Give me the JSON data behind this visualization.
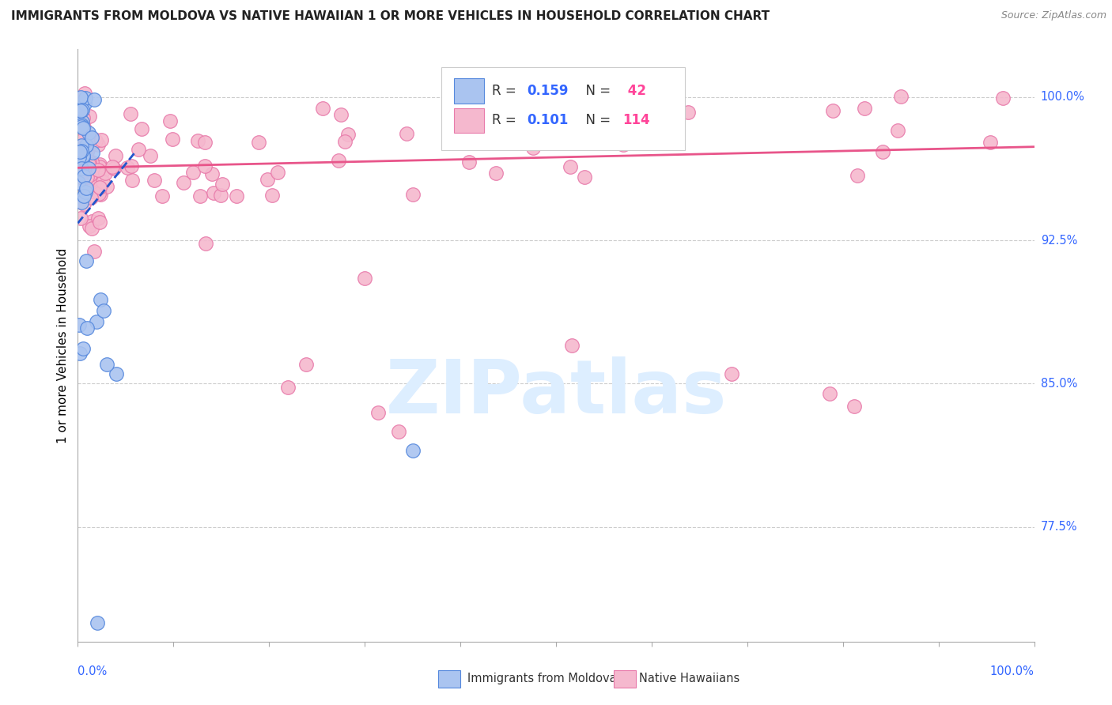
{
  "title": "IMMIGRANTS FROM MOLDOVA VS NATIVE HAWAIIAN 1 OR MORE VEHICLES IN HOUSEHOLD CORRELATION CHART",
  "source": "Source: ZipAtlas.com",
  "ylabel": "1 or more Vehicles in Household",
  "ytick_labels": [
    "77.5%",
    "85.0%",
    "92.5%",
    "100.0%"
  ],
  "ytick_values": [
    0.775,
    0.85,
    0.925,
    1.0
  ],
  "xlim": [
    0.0,
    1.0
  ],
  "ylim": [
    0.715,
    1.025
  ],
  "watermark_text": "ZIPatlas",
  "moldova_color": "#aac4f0",
  "moldova_edge": "#5588dd",
  "hawaii_color": "#f5b8ce",
  "hawaii_edge": "#e87aaa",
  "blue_line_color": "#2255cc",
  "pink_line_color": "#e8558a",
  "grid_color": "#cccccc",
  "right_label_color": "#3366ff",
  "watermark_color": "#ddeeff"
}
